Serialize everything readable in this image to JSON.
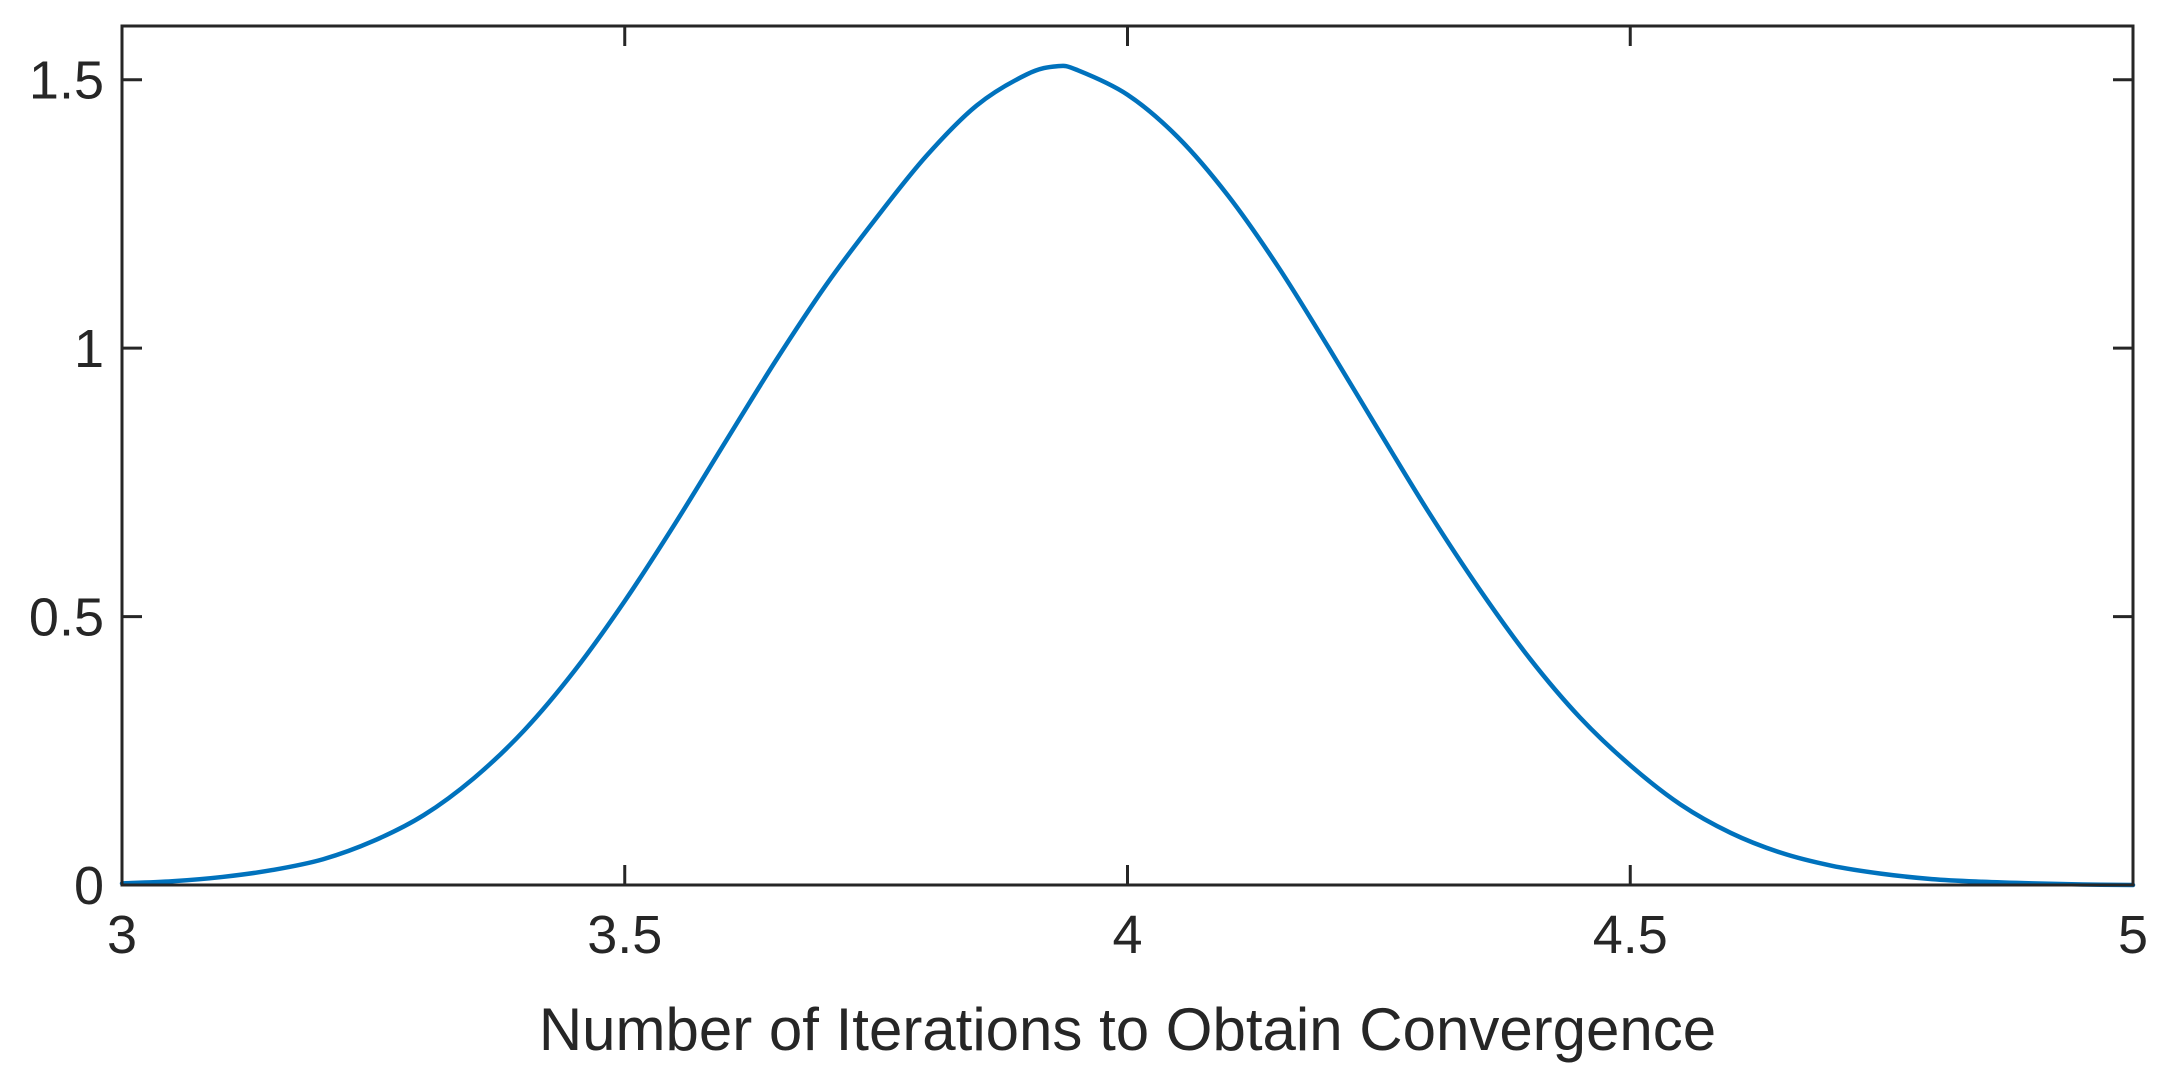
{
  "chart_data": {
    "type": "line",
    "title": "",
    "xlabel": "Number of Iterations to Obtain Convergence",
    "ylabel": "",
    "xlim": [
      3,
      5
    ],
    "ylim": [
      0,
      1.6
    ],
    "grid": false,
    "x_ticks": [
      3,
      3.5,
      4,
      4.5,
      5
    ],
    "x_tick_labels": [
      "3",
      "3.5",
      "4",
      "4.5",
      "5"
    ],
    "y_ticks": [
      0,
      0.5,
      1,
      1.5
    ],
    "y_tick_labels": [
      "0",
      "0.5",
      "1",
      "1.5"
    ],
    "series": [
      {
        "color": "#0072BD",
        "x": [
          3.0,
          3.05,
          3.1,
          3.15,
          3.2,
          3.25,
          3.3,
          3.35,
          3.4,
          3.45,
          3.5,
          3.55,
          3.6,
          3.65,
          3.7,
          3.75,
          3.8,
          3.85,
          3.9,
          3.93,
          3.95,
          4.0,
          4.05,
          4.1,
          4.15,
          4.2,
          4.25,
          4.3,
          4.35,
          4.4,
          4.45,
          4.5,
          4.55,
          4.6,
          4.65,
          4.7,
          4.75,
          4.8,
          4.85,
          4.9,
          4.95,
          5.0
        ],
        "y": [
          0.003,
          0.007,
          0.015,
          0.028,
          0.048,
          0.082,
          0.13,
          0.199,
          0.288,
          0.399,
          0.529,
          0.673,
          0.825,
          0.976,
          1.117,
          1.242,
          1.358,
          1.452,
          1.51,
          1.525,
          1.518,
          1.472,
          1.393,
          1.284,
          1.151,
          1.001,
          0.846,
          0.693,
          0.551,
          0.422,
          0.312,
          0.223,
          0.15,
          0.097,
          0.06,
          0.036,
          0.021,
          0.011,
          0.006,
          0.003,
          0.001,
          0.0
        ]
      }
    ]
  }
}
